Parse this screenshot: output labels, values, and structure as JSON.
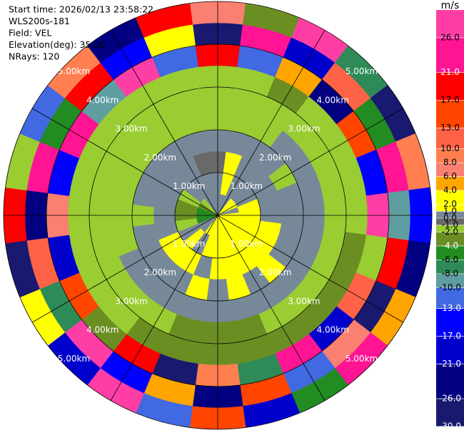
{
  "chart_data": {
    "type": "ppi",
    "info": [
      "Start time: 2026/02/13 23:58:22",
      "WLS200s-181",
      "Field: VEL",
      "Elevation(deg): 35.00",
      "NRays: 120"
    ],
    "azimuths": [
      0,
      15,
      30,
      45,
      60,
      75,
      90,
      105,
      120,
      135,
      150,
      165,
      180,
      195,
      210,
      225,
      240,
      255,
      270,
      285,
      300,
      315,
      330,
      345
    ],
    "ranges": [
      0,
      0.5,
      1,
      1.5,
      2,
      2.5,
      3,
      3.5,
      4,
      4.5,
      5
    ],
    "values": [
      [
        0.5,
        0.5,
        -0.5,
        0.5,
        -1.5,
        -1.5,
        -1.5,
        18,
        -27,
        7
      ],
      [
        0.5,
        3,
        3,
        0.5,
        -1.5,
        -1.5,
        -1.5,
        -11,
        24,
        -3
      ],
      [
        0.5,
        0.5,
        0.5,
        0.5,
        -1.5,
        -1.5,
        -3,
        5,
        -19,
        28
      ],
      [
        3,
        0.5,
        0.5,
        0.5,
        0.5,
        -1.5,
        -1.5,
        -23,
        12,
        -8
      ],
      [
        3,
        0.5,
        0.5,
        -1.5,
        0.5,
        -1.5,
        -1.5,
        15,
        -5,
        -28
      ],
      [
        0.5,
        3,
        0.5,
        0.5,
        0.5,
        -1.5,
        -1.5,
        -14,
        22,
        9
      ],
      [
        3,
        3,
        0.5,
        0.5,
        0.5,
        -1.5,
        -1.5,
        27,
        -9,
        -16
      ],
      [
        3,
        3,
        3,
        0.5,
        0.5,
        -1.5,
        -3,
        -2,
        19,
        -24
      ],
      [
        3,
        3,
        3,
        0.5,
        0.5,
        -1.5,
        -3,
        11,
        -29,
        5
      ],
      [
        3,
        3,
        3,
        3,
        0.5,
        -1.5,
        -3,
        -18,
        7,
        23
      ],
      [
        3,
        3,
        3,
        0.5,
        0.5,
        -1.5,
        -3,
        24,
        -12,
        -6
      ],
      [
        3,
        3,
        3,
        3,
        0.5,
        -3,
        -3,
        -7,
        16,
        -21
      ],
      [
        3,
        3,
        3,
        0.5,
        0.5,
        -3,
        -3,
        9,
        -25,
        14
      ],
      [
        3,
        3,
        0.5,
        3,
        0.5,
        -3,
        -3,
        -27,
        4,
        -11
      ],
      [
        3,
        0.5,
        3,
        0.5,
        0.5,
        -1.5,
        -3,
        20,
        -15,
        26
      ],
      [
        0.5,
        3,
        3,
        0.5,
        0.5,
        -1.5,
        -1.5,
        -4,
        29,
        -19
      ],
      [
        0.5,
        0.5,
        3,
        0.5,
        0.5,
        -1.5,
        -1.5,
        13,
        -8,
        3
      ],
      [
        -5,
        -1.5,
        0.5,
        0.5,
        -1.5,
        -1.5,
        -1.5,
        -20,
        11,
        -27
      ],
      [
        -5,
        -3,
        0.5,
        -1.5,
        -1.5,
        -1.5,
        -1.5,
        6,
        -22,
        17
      ],
      [
        -5,
        -3,
        0.5,
        0.5,
        -1.5,
        -1.5,
        -1.5,
        -15,
        25,
        -2
      ],
      [
        -3,
        -1.5,
        0.5,
        0.5,
        -1.5,
        -1.5,
        -1.5,
        22,
        -6,
        -13
      ],
      [
        -1.5,
        0.5,
        0.5,
        0.5,
        -1.5,
        -1.5,
        -1.5,
        -9,
        18,
        8
      ],
      [
        0.5,
        0.5,
        0.5,
        0.5,
        -1.5,
        -1.5,
        -1.5,
        28,
        -17,
        -24
      ],
      [
        0.5,
        0.5,
        -0.5,
        0.5,
        -1.5,
        -1.5,
        -1.5,
        -12,
        3,
        20
      ]
    ],
    "rings": [
      {
        "value": 1,
        "label": "1.00km"
      },
      {
        "value": 2,
        "label": "2.00km"
      },
      {
        "value": 3,
        "label": "3.00km"
      },
      {
        "value": 4,
        "label": "4.00km"
      },
      {
        "value": 5,
        "label": "5.00km"
      }
    ],
    "colorbar": {
      "title": "m/s",
      "bounds": [
        -30,
        -26,
        -21,
        -17,
        -13,
        -10,
        -8,
        -6,
        -4,
        -2,
        -1,
        0,
        1,
        2,
        4,
        6,
        8,
        10,
        13,
        17,
        21,
        26,
        30
      ],
      "colors": [
        "#191970",
        "#000080",
        "#0000cd",
        "#0000ff",
        "#4169e1",
        "#5f9ea0",
        "#2e8b57",
        "#228b22",
        "#6b8e23",
        "#9acd32",
        "#696969",
        "#778899",
        "#ffff00",
        "#ffff00",
        "#ffa500",
        "#fa8072",
        "#ff7f50",
        "#ff6347",
        "#ff4500",
        "#ff0000",
        "#ff1493",
        "#ff3ea5"
      ],
      "ticks": [
        {
          "value": -30,
          "label": "-30.0"
        },
        {
          "value": -26,
          "label": "-26.0"
        },
        {
          "value": -21,
          "label": "-21.0"
        },
        {
          "value": -17,
          "label": "-17.0"
        },
        {
          "value": -13,
          "label": "-13.0"
        },
        {
          "value": -10,
          "label": "-10.0"
        },
        {
          "value": -8,
          "label": "-8.0"
        },
        {
          "value": -6,
          "label": "-6.0"
        },
        {
          "value": -4,
          "label": "-4.0"
        },
        {
          "value": -2,
          "label": "-2.0"
        },
        {
          "value": -1,
          "label": "-1.0"
        },
        {
          "value": 0,
          "label": "0.0"
        },
        {
          "value": 1,
          "label": "1.0"
        },
        {
          "value": 2,
          "label": "2.0"
        },
        {
          "value": 4,
          "label": "4.0"
        },
        {
          "value": 6,
          "label": "6.0"
        },
        {
          "value": 8,
          "label": "8.0"
        },
        {
          "value": 10,
          "label": "10.0"
        },
        {
          "value": 13,
          "label": "13.0"
        },
        {
          "value": 17,
          "label": "17.0"
        },
        {
          "value": 21,
          "label": "21.0"
        },
        {
          "value": 26,
          "label": "26.0"
        }
      ]
    }
  }
}
